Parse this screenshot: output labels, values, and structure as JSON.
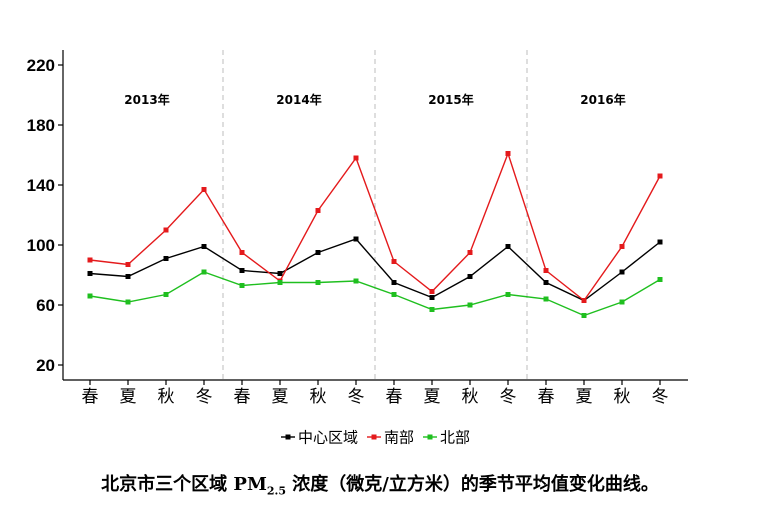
{
  "chart_data": {
    "type": "line",
    "categories": [
      "春",
      "夏",
      "秋",
      "冬",
      "春",
      "夏",
      "秋",
      "冬",
      "春",
      "夏",
      "秋",
      "冬",
      "春",
      "夏",
      "秋",
      "冬"
    ],
    "year_labels": [
      "2013年",
      "2014年",
      "2015年",
      "2016年"
    ],
    "ylim": [
      10,
      230
    ],
    "yticks": [
      20,
      60,
      100,
      140,
      180,
      220
    ],
    "grid": false,
    "legend_position": "bottom",
    "series": [
      {
        "name": "中心区域",
        "color": "#000000",
        "values": [
          81,
          79,
          91,
          99,
          83,
          81,
          95,
          104,
          75,
          65,
          79,
          99,
          75,
          63,
          82,
          102
        ]
      },
      {
        "name": "南部",
        "color": "#e41a1c",
        "values": [
          90,
          87,
          110,
          137,
          95,
          76,
          123,
          158,
          89,
          69,
          95,
          161,
          83,
          63,
          99,
          146
        ]
      },
      {
        "name": "北部",
        "color": "#1fbf1f",
        "values": [
          66,
          62,
          67,
          82,
          73,
          75,
          75,
          76,
          67,
          57,
          60,
          67,
          64,
          53,
          62,
          77
        ]
      }
    ]
  },
  "caption": {
    "prefix": "北京市三个区域 PM",
    "subscript": "2.5",
    "suffix": " 浓度（微克/立方米）的季节平均值变化曲线。"
  }
}
